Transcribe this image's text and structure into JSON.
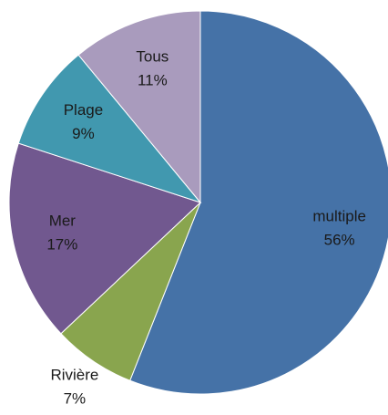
{
  "chart_data": {
    "type": "pie",
    "categories": [
      "multiple",
      "Rivière",
      "Mer",
      "Plage",
      "Tous"
    ],
    "values": [
      56,
      7,
      17,
      9,
      11
    ],
    "value_labels": [
      "56%",
      "7%",
      "17%",
      "9%",
      "11%"
    ],
    "colors": [
      "#4572a7",
      "#89a54e",
      "#71588f",
      "#4198af",
      "#a99bbd"
    ]
  }
}
